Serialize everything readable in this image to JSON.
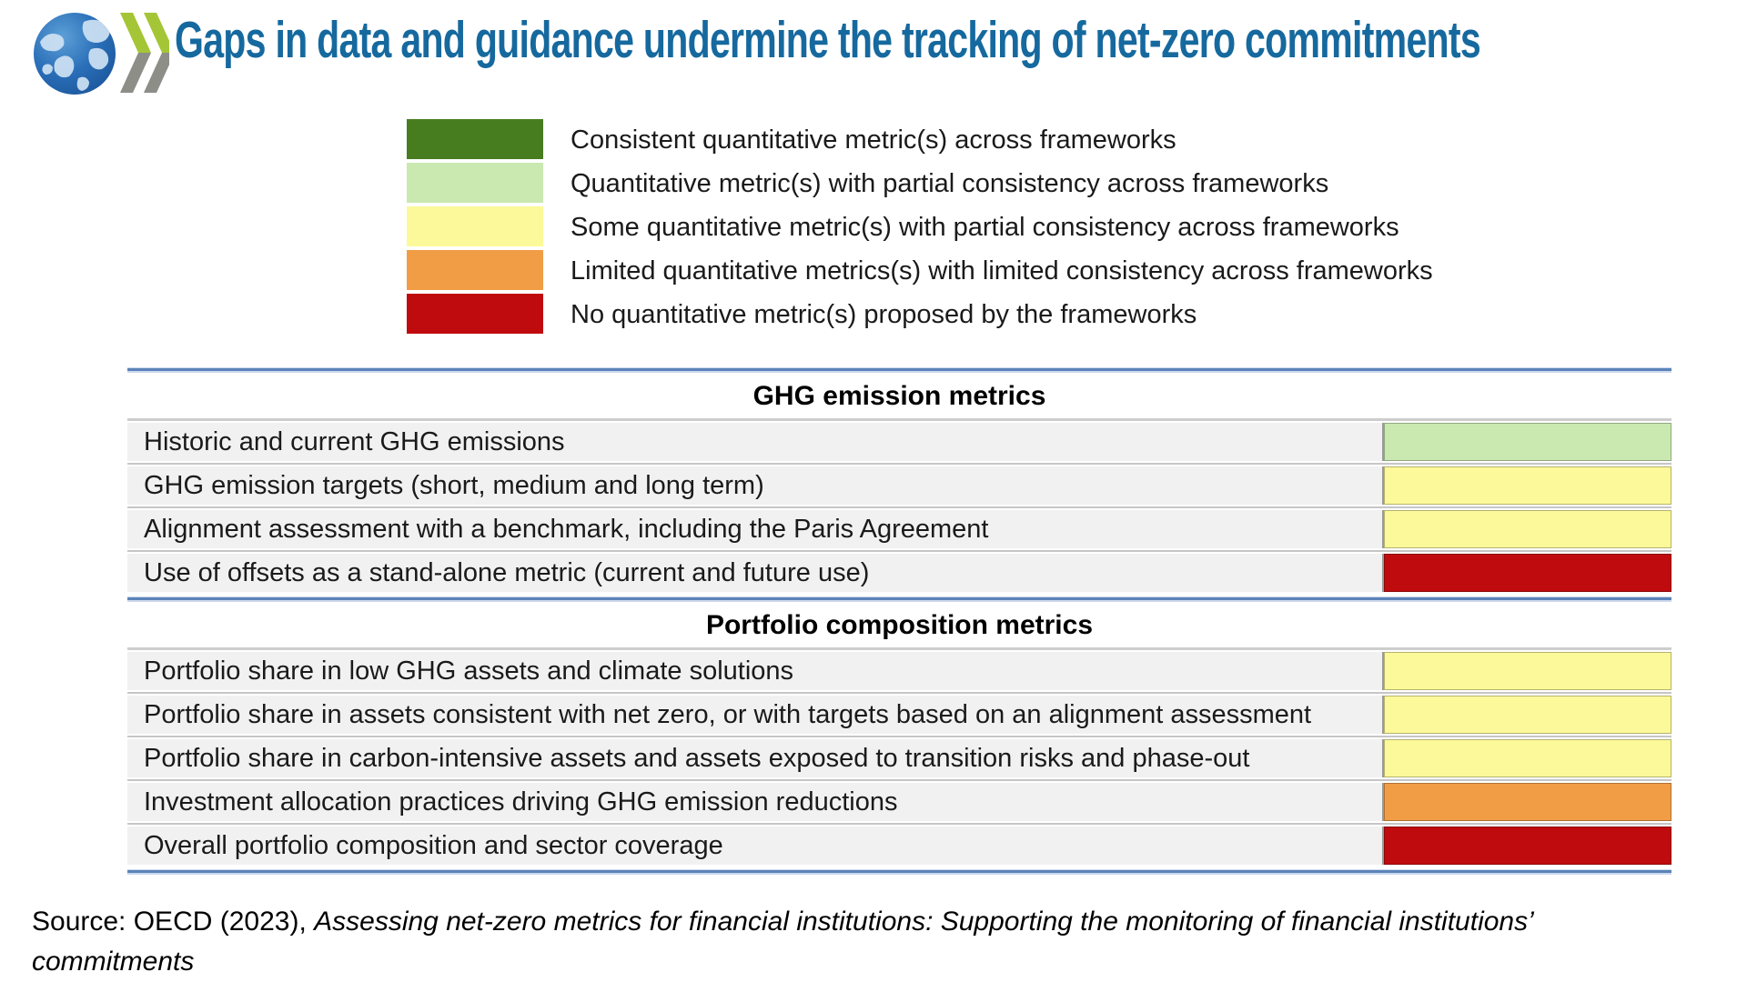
{
  "header": {
    "title": "Gaps in data and guidance undermine the tracking of net-zero commitments",
    "title_color": "#16699e",
    "logo": {
      "globe_color": "#2a6fb8",
      "chevron_green": "#a4c636",
      "chevron_gray": "#8c8e87"
    }
  },
  "legend": {
    "items": [
      {
        "rating": "consistent",
        "color": "#477d1f",
        "label": "Consistent quantitative metric(s) across frameworks"
      },
      {
        "rating": "quantitative-partial",
        "color": "#c9e9b1",
        "label": "Quantitative metric(s) with partial consistency across frameworks"
      },
      {
        "rating": "some-partial",
        "color": "#fbf999",
        "label": "Some quantitative metric(s) with partial consistency across frameworks"
      },
      {
        "rating": "limited",
        "color": "#f09d46",
        "label": "Limited quantitative metrics(s) with limited consistency across frameworks"
      },
      {
        "rating": "none",
        "color": "#c00b0e",
        "label": "No quantitative metric(s) proposed by the frameworks"
      }
    ]
  },
  "table": {
    "rating_colors": {
      "consistent": "#477d1f",
      "quantitative-partial": "#c9e9b1",
      "some-partial": "#fbf999",
      "limited": "#f09d46",
      "none": "#c00b0e"
    },
    "sections": [
      {
        "header": "GHG emission metrics",
        "rows": [
          {
            "label": "Historic and current GHG emissions",
            "rating": "quantitative-partial"
          },
          {
            "label": "GHG emission targets (short, medium and long term)",
            "rating": "some-partial"
          },
          {
            "label": "Alignment assessment with a benchmark, including the Paris Agreement",
            "rating": "some-partial"
          },
          {
            "label": "Use of offsets as a stand-alone metric (current and future use)",
            "rating": "none"
          }
        ]
      },
      {
        "header": "Portfolio composition metrics",
        "rows": [
          {
            "label": "Portfolio share in low GHG assets and climate solutions",
            "rating": "some-partial"
          },
          {
            "label": "Portfolio share in assets consistent with net zero, or with targets based on an alignment assessment",
            "rating": "some-partial"
          },
          {
            "label": "Portfolio share in carbon-intensive assets and assets exposed to transition risks and phase-out",
            "rating": "some-partial"
          },
          {
            "label": "Investment allocation practices driving GHG emission reductions",
            "rating": "limited"
          },
          {
            "label": "Overall portfolio composition and sector coverage",
            "rating": "none"
          }
        ]
      }
    ]
  },
  "source": {
    "prefix": "Source: OECD (2023), ",
    "citation": "Assessing net-zero metrics for financial institutions: Supporting the monitoring of financial institutions’ commitments"
  },
  "chart_data": {
    "type": "table",
    "title": "Gaps in data and guidance undermine the tracking of net-zero commitments",
    "legend_position": "top",
    "legend": [
      {
        "color": "#477d1f",
        "label": "Consistent quantitative metric(s) across frameworks"
      },
      {
        "color": "#c9e9b1",
        "label": "Quantitative metric(s) with partial consistency across frameworks"
      },
      {
        "color": "#fbf999",
        "label": "Some quantitative metric(s) with partial consistency across frameworks"
      },
      {
        "color": "#f09d46",
        "label": "Limited quantitative metrics(s) with limited consistency across frameworks"
      },
      {
        "color": "#c00b0e",
        "label": "No quantitative metric(s) proposed by the frameworks"
      }
    ],
    "sections": [
      {
        "name": "GHG emission metrics",
        "rows": [
          {
            "metric": "Historic and current GHG emissions",
            "rating": "Quantitative metric(s) with partial consistency across frameworks"
          },
          {
            "metric": "GHG emission targets (short, medium and long term)",
            "rating": "Some quantitative metric(s) with partial consistency across frameworks"
          },
          {
            "metric": "Alignment assessment with a benchmark, including the Paris Agreement",
            "rating": "Some quantitative metric(s) with partial consistency across frameworks"
          },
          {
            "metric": "Use of offsets as a stand-alone metric (current and future use)",
            "rating": "No quantitative metric(s) proposed by the frameworks"
          }
        ]
      },
      {
        "name": "Portfolio composition metrics",
        "rows": [
          {
            "metric": "Portfolio share in low GHG assets and climate solutions",
            "rating": "Some quantitative metric(s) with partial consistency across frameworks"
          },
          {
            "metric": "Portfolio share in assets consistent with net zero, or with targets based on an alignment assessment",
            "rating": "Some quantitative metric(s) with partial consistency across frameworks"
          },
          {
            "metric": "Portfolio share in carbon-intensive assets and assets exposed to transition risks and phase-out",
            "rating": "Some quantitative metric(s) with partial consistency across frameworks"
          },
          {
            "metric": "Investment allocation practices driving GHG emission reductions",
            "rating": "Limited quantitative metrics(s) with limited consistency across frameworks"
          },
          {
            "metric": "Overall portfolio composition and sector coverage",
            "rating": "No quantitative metric(s) proposed by the frameworks"
          }
        ]
      }
    ],
    "source": "Source: OECD (2023), Assessing net-zero metrics for financial institutions: Supporting the monitoring of financial institutions’ commitments"
  }
}
